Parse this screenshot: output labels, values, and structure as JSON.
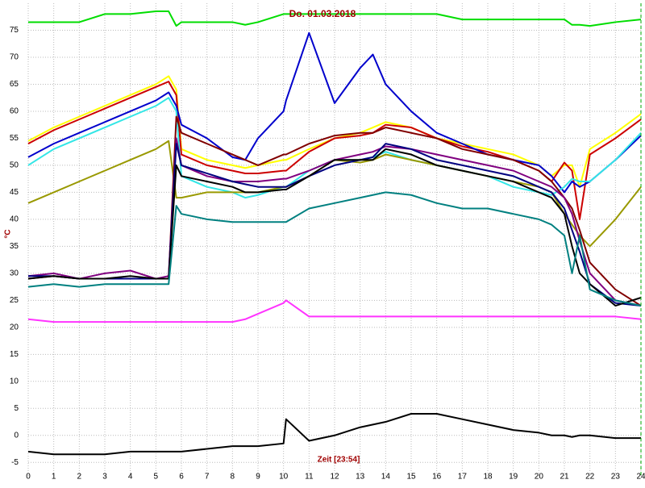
{
  "chart_data": {
    "type": "line",
    "title": "Do. 01.03.2018",
    "xlabel": "Zeit [23:54]",
    "ylabel": "°C",
    "grid": true,
    "xlim": [
      0,
      24
    ],
    "xticks": [
      0,
      1,
      2,
      3,
      4,
      5,
      6,
      7,
      8,
      9,
      10,
      11,
      12,
      13,
      14,
      15,
      16,
      17,
      18,
      19,
      20,
      21,
      22,
      23,
      24
    ],
    "ylim": [
      -7.5,
      80
    ],
    "yticks": [
      -5,
      0,
      5,
      10,
      15,
      20,
      25,
      30,
      35,
      40,
      45,
      50,
      55,
      60,
      65,
      70,
      75
    ],
    "x": [
      0,
      1,
      2,
      3,
      4,
      5,
      5.5,
      5.8,
      6,
      7,
      8,
      8.5,
      9,
      10,
      10.1,
      11,
      12,
      13,
      13.5,
      14,
      15,
      16,
      17,
      18,
      19,
      20,
      20.5,
      21,
      21.3,
      21.6,
      22,
      23,
      24
    ],
    "series": [
      {
        "color": "#00dd00",
        "values": [
          76.5,
          76.5,
          76.5,
          78,
          78,
          78.5,
          78.5,
          75.8,
          76.5,
          76.5,
          76.5,
          76,
          76.5,
          78,
          78,
          78,
          78,
          78,
          78,
          78,
          78,
          78,
          77,
          77,
          77,
          77,
          77,
          77,
          76,
          76,
          75.8,
          76.5,
          77
        ]
      },
      {
        "color": "#ffff00",
        "values": [
          54.5,
          57,
          59,
          61,
          63,
          65,
          66.5,
          64,
          53,
          51,
          50,
          49.5,
          50,
          51,
          51,
          53,
          55,
          56,
          57,
          58,
          57,
          55,
          54,
          53,
          52,
          50,
          48,
          50,
          50,
          46,
          53,
          56,
          59.5
        ]
      },
      {
        "color": "#cc0000",
        "values": [
          54,
          56.5,
          58.5,
          60.5,
          62.5,
          64.5,
          65.5,
          63,
          52,
          50,
          49,
          48.5,
          48.5,
          49,
          49,
          52.5,
          55,
          55.5,
          56,
          57.5,
          57,
          55,
          53.5,
          52.5,
          51,
          49,
          47,
          50.5,
          49,
          40,
          52,
          55,
          58.5
        ]
      },
      {
        "color": "#0000cc",
        "values": [
          51.5,
          54,
          56,
          58,
          60,
          62,
          63.5,
          61,
          57.5,
          55,
          51.5,
          51,
          55,
          60,
          62,
          74.5,
          61.5,
          68,
          70.5,
          65,
          60,
          56,
          54,
          52,
          51,
          50,
          48,
          45,
          47,
          46,
          47,
          51,
          55.5
        ]
      },
      {
        "color": "#33e6e6",
        "values": [
          50,
          53,
          55,
          57,
          59,
          61,
          62.5,
          60,
          48,
          46,
          45,
          44,
          44.5,
          46,
          46,
          49,
          51,
          51,
          51.5,
          52.5,
          51,
          50,
          49,
          48,
          46,
          45,
          44.5,
          46,
          47.5,
          47,
          47,
          51,
          56
        ]
      },
      {
        "color": "#999900",
        "values": [
          43,
          45,
          47,
          49,
          51,
          53,
          54.5,
          44,
          44,
          45,
          45,
          45,
          45,
          46,
          46,
          48,
          51,
          50.5,
          51,
          52,
          51,
          50,
          49,
          48,
          47,
          46,
          45,
          41,
          39,
          37,
          35,
          40,
          46
        ]
      },
      {
        "color": "#800000",
        "values": [
          29,
          29.5,
          29,
          29,
          29,
          29,
          29,
          59,
          56,
          54,
          52,
          51,
          50,
          52,
          52,
          54,
          55.5,
          56,
          56,
          57,
          56,
          55,
          53,
          52,
          51,
          49,
          47,
          44,
          42,
          38,
          32,
          27,
          24
        ]
      },
      {
        "color": "#800080",
        "values": [
          29.5,
          30,
          29,
          30,
          30.5,
          29,
          29.5,
          55,
          50,
          48,
          47,
          47,
          47,
          47.5,
          47.5,
          49,
          51,
          52,
          52.5,
          53.5,
          53,
          52,
          51,
          50,
          49,
          47,
          46,
          44,
          41,
          36,
          30,
          25,
          24
        ]
      },
      {
        "color": "#000080",
        "values": [
          29.5,
          29.5,
          29,
          29,
          29,
          29,
          29,
          54,
          50,
          48.5,
          47,
          46.5,
          46,
          46,
          46,
          48,
          50,
          51,
          51.5,
          54,
          53,
          51,
          50,
          49,
          48,
          46,
          45,
          42,
          38,
          34,
          28,
          24.5,
          24
        ]
      },
      {
        "color": "#000000",
        "values": [
          29,
          29.5,
          29,
          29,
          29.5,
          29,
          29,
          50,
          48,
          47,
          46,
          45,
          45,
          45.5,
          45.5,
          48,
          51,
          51,
          51,
          53,
          52,
          50,
          49,
          48,
          47,
          45,
          44,
          41,
          35,
          30,
          28,
          24,
          25.5
        ]
      },
      {
        "color": "#008080",
        "values": [
          27.5,
          28,
          27.5,
          28,
          28,
          28,
          28,
          42.5,
          41,
          40,
          39.5,
          39.5,
          39.5,
          39.5,
          39.5,
          42,
          43,
          44,
          44.5,
          45,
          44.5,
          43,
          42,
          42,
          41,
          40,
          39,
          37,
          30,
          37,
          27,
          25,
          24
        ]
      },
      {
        "color": "#ff33ff",
        "values": [
          21.5,
          21,
          21,
          21,
          21,
          21,
          21,
          21,
          21,
          21,
          21,
          21.5,
          22.5,
          24.5,
          25,
          22,
          22,
          22,
          22,
          22,
          22,
          22,
          22,
          22,
          22,
          22,
          22,
          22,
          22,
          22,
          22,
          22,
          21.5
        ]
      },
      {
        "color": "#000000",
        "values": [
          -3,
          -3.5,
          -3.5,
          -3.5,
          -3,
          -3,
          -3,
          -3,
          -3,
          -2.5,
          -2,
          -2,
          -2,
          -1.5,
          3,
          -1,
          0,
          1.5,
          2,
          2.5,
          4,
          4,
          3,
          2,
          1,
          0.5,
          0,
          0,
          -0.3,
          0,
          0,
          -0.5,
          -0.5
        ]
      }
    ]
  }
}
